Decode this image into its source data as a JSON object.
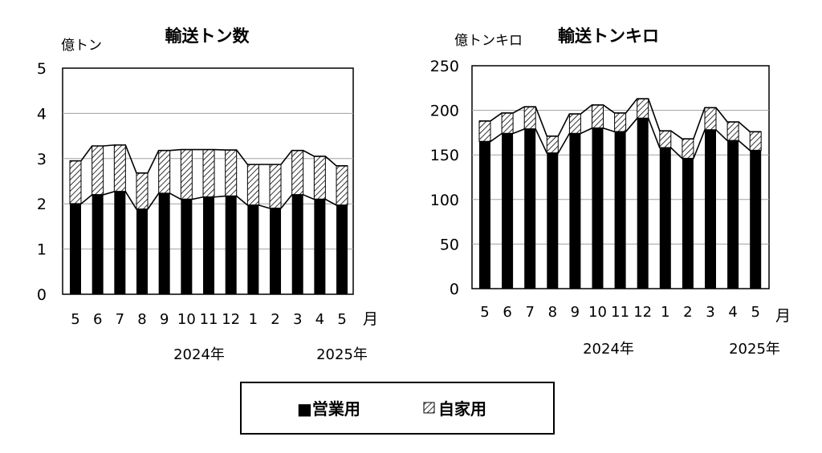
{
  "legend": {
    "eigyo": "■営業用",
    "jika": "自家用"
  },
  "colors": {
    "eigyo": "#000000",
    "jika_hatch": "#000000",
    "grid": "#a0a0a0"
  },
  "chart_data": [
    {
      "type": "bar",
      "stacked": true,
      "title": "輸送トン数",
      "unit_label": "億トン",
      "month_label": "月",
      "year_labels": [
        "2024年",
        "2025年"
      ],
      "categories": [
        "5",
        "6",
        "7",
        "8",
        "9",
        "10",
        "11",
        "12",
        "1",
        "2",
        "3",
        "4",
        "5"
      ],
      "ylim": [
        0,
        5
      ],
      "yticks": [
        0,
        1,
        2,
        3,
        4,
        5
      ],
      "grid": true,
      "series": [
        {
          "name": "営業用",
          "values": [
            2.0,
            2.2,
            2.27,
            1.88,
            2.23,
            2.1,
            2.15,
            2.17,
            1.97,
            1.9,
            2.2,
            2.1,
            1.97
          ]
        },
        {
          "name": "自家用",
          "values": [
            0.95,
            1.08,
            1.03,
            0.8,
            0.95,
            1.1,
            1.05,
            1.02,
            0.9,
            0.97,
            0.98,
            0.95,
            0.87
          ]
        }
      ]
    },
    {
      "type": "bar",
      "stacked": true,
      "title": "輸送トンキロ",
      "unit_label": "億トンキロ",
      "month_label": "月",
      "year_labels": [
        "2024年",
        "2025年"
      ],
      "categories": [
        "5",
        "6",
        "7",
        "8",
        "9",
        "10",
        "11",
        "12",
        "1",
        "2",
        "3",
        "4",
        "5"
      ],
      "ylim": [
        0,
        250
      ],
      "yticks": [
        0,
        50,
        100,
        150,
        200,
        250
      ],
      "grid": true,
      "series": [
        {
          "name": "営業用",
          "values": [
            165,
            174,
            179,
            152,
            174,
            180,
            176,
            191,
            158,
            146,
            178,
            166,
            155
          ]
        },
        {
          "name": "自家用",
          "values": [
            23,
            23,
            25,
            19,
            22,
            26,
            21,
            22,
            19,
            22,
            25,
            21,
            21
          ]
        }
      ]
    }
  ]
}
